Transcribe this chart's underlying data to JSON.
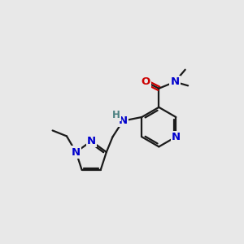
{
  "bg_color": "#e8e8e8",
  "bond_color": "#1a1a1a",
  "N_color": "#0000cc",
  "O_color": "#cc0000",
  "H_color": "#4a8080",
  "font_size": 9.5,
  "bond_width": 1.6,
  "xlim": [
    0,
    10
  ],
  "ylim": [
    0,
    10
  ]
}
